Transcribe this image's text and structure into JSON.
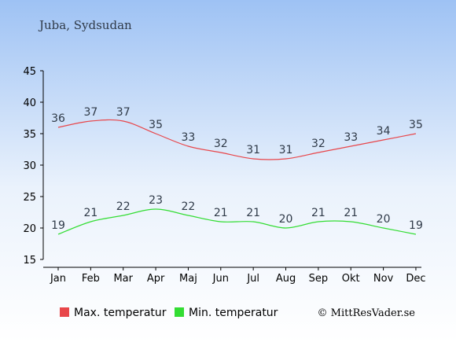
{
  "chart_data": {
    "type": "line",
    "title": "Juba, Sydsudan",
    "categories": [
      "Jan",
      "Feb",
      "Mar",
      "Apr",
      "Maj",
      "Jun",
      "Jul",
      "Aug",
      "Sep",
      "Okt",
      "Nov",
      "Dec"
    ],
    "ylim": [
      15,
      45
    ],
    "yticks": [
      15,
      20,
      25,
      30,
      35,
      40,
      45
    ],
    "grid": false,
    "legend_position": "bottom",
    "series": [
      {
        "name": "Max. temperatur",
        "color": "#e8464a",
        "values": [
          36,
          37,
          37,
          35,
          33,
          32,
          31,
          31,
          32,
          33,
          34,
          35
        ]
      },
      {
        "name": "Min. temperatur",
        "color": "#33dd33",
        "values": [
          19,
          21,
          22,
          23,
          22,
          21,
          21,
          20,
          21,
          21,
          20,
          19
        ]
      }
    ]
  },
  "credit": "© MittResVader.se"
}
